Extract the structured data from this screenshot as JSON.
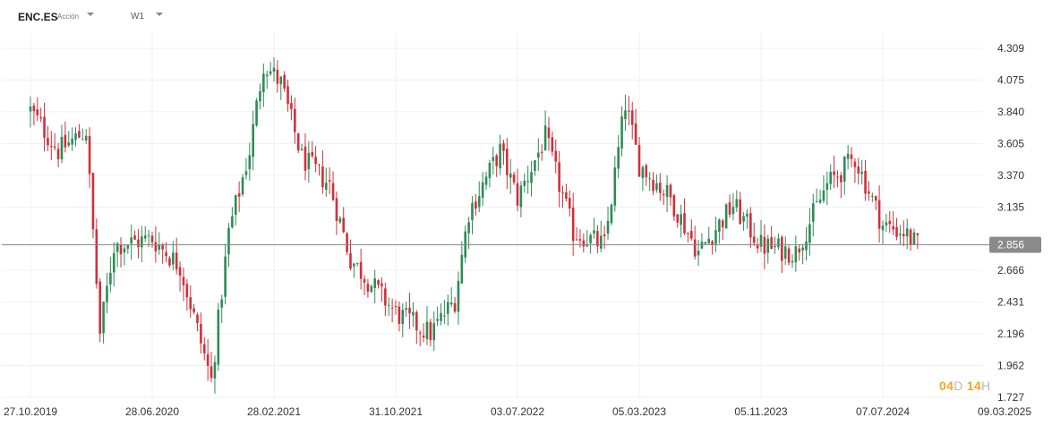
{
  "header": {
    "symbol": "ENC.ES",
    "instrument_type": "Acción",
    "interval": "W1"
  },
  "countdown": {
    "days": "04",
    "days_unit": "D",
    "hours": "14",
    "hours_unit": "H"
  },
  "colors": {
    "up": "#2e8b57",
    "down": "#d0303a",
    "price_line": "#888888",
    "price_label_bg": "#8a8a8a",
    "grid": "#f0f0f0"
  },
  "chart_data": {
    "type": "candlestick",
    "title": "",
    "xlabel": "",
    "ylabel": "",
    "ylim": [
      1.727,
      4.5
    ],
    "grid": true,
    "y_ticks": [
      "4.309",
      "4.075",
      "3.840",
      "3.605",
      "3.370",
      "3.135",
      "2.666",
      "2.431",
      "2.196",
      "1.962",
      "1.727"
    ],
    "x_ticks": [
      "27.10.2019",
      "28.06.2020",
      "28.02.2021",
      "31.10.2021",
      "03.07.2022",
      "05.03.2023",
      "05.11.2023",
      "07.07.2024",
      "09.03.2025"
    ],
    "x_range": [
      "2019-10-27",
      "2025-03-09"
    ],
    "last_price": "2.856",
    "close_series": [
      [
        "2019-10-27",
        3.85
      ],
      [
        "2019-12-22",
        3.55
      ],
      [
        "2020-02-16",
        3.7
      ],
      [
        "2020-03-15",
        2.2
      ],
      [
        "2020-04-12",
        2.85
      ],
      [
        "2020-06-28",
        2.9
      ],
      [
        "2020-08-23",
        2.7
      ],
      [
        "2020-10-25",
        1.85
      ],
      [
        "2020-11-29",
        2.95
      ],
      [
        "2021-01-10",
        3.55
      ],
      [
        "2021-02-07",
        4.2
      ],
      [
        "2021-03-14",
        4.05
      ],
      [
        "2021-04-25",
        3.5
      ],
      [
        "2021-06-20",
        3.3
      ],
      [
        "2021-08-01",
        2.75
      ],
      [
        "2021-10-31",
        2.35
      ],
      [
        "2022-01-09",
        2.2
      ],
      [
        "2022-02-27",
        2.45
      ],
      [
        "2022-03-27",
        3.1
      ],
      [
        "2022-05-29",
        3.55
      ],
      [
        "2022-07-03",
        3.2
      ],
      [
        "2022-08-28",
        3.65
      ],
      [
        "2022-10-23",
        2.95
      ],
      [
        "2022-12-25",
        2.85
      ],
      [
        "2023-02-05",
        3.9
      ],
      [
        "2023-03-05",
        3.45
      ],
      [
        "2023-05-07",
        3.2
      ],
      [
        "2023-07-02",
        2.8
      ],
      [
        "2023-09-10",
        3.15
      ],
      [
        "2023-11-05",
        2.85
      ],
      [
        "2024-01-14",
        2.8
      ],
      [
        "2024-03-17",
        3.3
      ],
      [
        "2024-05-12",
        3.5
      ],
      [
        "2024-07-07",
        3.0
      ],
      [
        "2024-08-18",
        2.95
      ],
      [
        "2024-09-15",
        2.85
      ]
    ]
  }
}
